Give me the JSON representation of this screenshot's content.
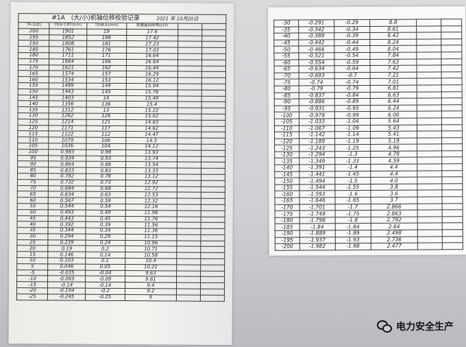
{
  "left_sheet": {
    "title": "#1A　(大/小)机轴位移校验记录",
    "date": "2021 年 10月20日",
    "headers": [
      "TK-3(丝)",
      "DEH CRT(mm)",
      "TSI表头(mm)",
      "前置器间隙电压(V)",
      "",
      ""
    ],
    "rows": [
      [
        "200",
        "1901",
        "19",
        "17.6"
      ],
      [
        "195",
        "1852",
        "186",
        "17.42"
      ],
      [
        "190",
        "1808",
        "181",
        "17.23"
      ],
      [
        "185",
        "1761",
        "176",
        "17.03"
      ],
      [
        "180",
        "1711",
        "171",
        "16.64"
      ],
      [
        "175",
        "1664",
        "166",
        "16.64"
      ],
      [
        "170",
        "1621",
        "162",
        "16.44"
      ],
      [
        "165",
        "1574",
        "157",
        "16.29"
      ],
      [
        "160",
        "1534",
        "153",
        "16.12"
      ],
      [
        "155",
        "1489",
        "149",
        "15.94"
      ],
      [
        "150",
        "1443",
        "145",
        "15.76"
      ],
      [
        "145",
        "1403",
        "14",
        "15.49"
      ],
      [
        "140",
        "1356",
        "136",
        "15.4"
      ],
      [
        "135",
        "1312",
        "13",
        "15.22"
      ],
      [
        "130",
        "1262",
        "126",
        "15.02"
      ],
      [
        "125",
        "1214",
        "121",
        "14.83"
      ],
      [
        "120",
        "1171",
        "117",
        "14.62"
      ],
      [
        "115",
        "1122",
        "112",
        "14.47"
      ],
      [
        "110",
        "1079",
        "106",
        "14.3"
      ],
      [
        "105",
        "1036",
        "104",
        "14.12"
      ],
      [
        "100",
        "0.983",
        "0.98",
        "13.93"
      ],
      [
        "95",
        "0.934",
        "0.93",
        "13.74"
      ],
      [
        "90",
        "0.864",
        "0.88",
        "13.54"
      ],
      [
        "85",
        "0.833",
        "0.83",
        "13.33"
      ],
      [
        "80",
        "0.782",
        "0.78",
        "13.12"
      ],
      [
        "75",
        "0.732",
        "0.73",
        "12.92"
      ],
      [
        "70",
        "0.684",
        "0.68",
        "12.72"
      ],
      [
        "65",
        "0.634",
        "0.63",
        "12.53"
      ],
      [
        "60",
        "0.567",
        "0.59",
        "12.32"
      ],
      [
        "55",
        "0.544",
        "0.54",
        "12.16"
      ],
      [
        "50",
        "0.493",
        "0.49",
        "11.96"
      ],
      [
        "45",
        "0.443",
        "0.45",
        "11.76"
      ],
      [
        "40",
        "0.392",
        "0.39",
        "11.56"
      ],
      [
        "35",
        "0.344",
        "0.34",
        "11.36"
      ],
      [
        "30",
        "0.294",
        "0.29",
        "11.15"
      ],
      [
        "25",
        "0.239",
        "0.24",
        "10.96"
      ],
      [
        "20",
        "0.19",
        "0.2",
        "10.71"
      ],
      [
        "15",
        "0.146",
        "0.14",
        "10.58"
      ],
      [
        "10",
        "0.103",
        "0.1",
        "10.4"
      ],
      [
        "5",
        "0.046",
        "0.05",
        "10.21"
      ],
      [
        "-5",
        "-0.035",
        "-0.04",
        "9.63"
      ],
      [
        "-10",
        "-0.069",
        "-0.09",
        "9.61"
      ],
      [
        "-15",
        "-0.14",
        "-0.14",
        "9.4"
      ],
      [
        "-20",
        "-0.194",
        "-0.2",
        "9.2"
      ],
      [
        "-25",
        "-0.245",
        "-0.25",
        "9"
      ]
    ]
  },
  "right_sheet": {
    "rows": [
      [
        "-30",
        "-0.291",
        "-0.29",
        "8.8"
      ],
      [
        "-35",
        "-0.342",
        "-0.34",
        "8.61"
      ],
      [
        "-40",
        "-0.389",
        "-0.39",
        "8.42"
      ],
      [
        "-45",
        "-0.442",
        "-0.44",
        "8.24"
      ],
      [
        "-50",
        "-0.466",
        "-0.49",
        "8.04"
      ],
      [
        "-55",
        "-0.521",
        "-0.54",
        "7.84"
      ],
      [
        "-60",
        "-0.554",
        "-0.59",
        "7.63"
      ],
      [
        "-65",
        "-0.634",
        "-0.64",
        "7.42"
      ],
      [
        "-70",
        "-0.693",
        "-0.7",
        "7.21"
      ],
      [
        "-75",
        "-0.74",
        "-0.74",
        "7.01"
      ],
      [
        "-80",
        "-0.79",
        "-0.79",
        "6.81"
      ],
      [
        "-85",
        "-0.837",
        "-0.84",
        "6.63"
      ],
      [
        "-90",
        "-0.886",
        "-0.89",
        "6.44"
      ],
      [
        "-95",
        "-0.931",
        "-0.95",
        "6.24"
      ],
      [
        "-100",
        "-0.978",
        "-0.99",
        "6.06"
      ],
      [
        "-105",
        "-1.033",
        "-1.04",
        "5.64"
      ],
      [
        "-110",
        "-1.067",
        "-1.09",
        "5.43"
      ],
      [
        "-115",
        "-1.142",
        "-1.14",
        "5.41"
      ],
      [
        "-120",
        "-1.189",
        "-1.19",
        "5.19"
      ],
      [
        "-125",
        "-1.243",
        "-1.25",
        "4.96"
      ],
      [
        "-130",
        "-1.294",
        "-1.3",
        "4.78"
      ],
      [
        "-135",
        "-1.349",
        "-1.33",
        "4.59"
      ],
      [
        "-140",
        "-1.391",
        "-1.4",
        "4.4"
      ],
      [
        "-145",
        "-1.441",
        "-1.45",
        "4.4"
      ],
      [
        "-150",
        "-1.494",
        "-1.5",
        "4.0"
      ],
      [
        "-155",
        "-1.544",
        "-1.55",
        "3.8"
      ],
      [
        "-160",
        "-1.593",
        "-1.6",
        "3.6"
      ],
      [
        "-165",
        "-1.646",
        "-1.65",
        "3.7"
      ],
      [
        "-170",
        "-1.701",
        "-1.7",
        "2.866"
      ],
      [
        "-175",
        "-1.749",
        "-1.75",
        "2.863"
      ],
      [
        "-180",
        "-1.798",
        "-1.8",
        "2.792"
      ],
      [
        "-185",
        "-1.84",
        "-1.84",
        "2.64"
      ],
      [
        "-190",
        "-1.889",
        "-1.89",
        "2.498"
      ],
      [
        "-195",
        "-1.937",
        "-1.93",
        "2.736"
      ],
      [
        "-200",
        "-1.982",
        "-1.98",
        "2.477"
      ]
    ]
  },
  "watermark": {
    "text": "电力安全生产",
    "icon": "wechat-icon"
  }
}
